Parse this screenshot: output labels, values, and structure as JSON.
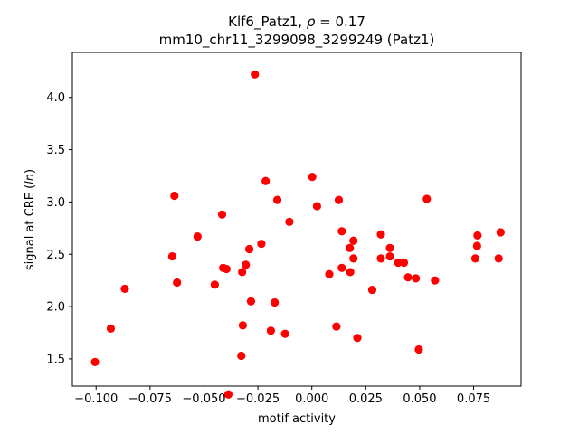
{
  "chart_data": {
    "type": "scatter",
    "title_line1_prefix": "Klf6_Patz1, ",
    "title_line1_rho": "ρ",
    "title_line1_suffix": " = 0.17",
    "title_line2": "mm10_chr11_3299098_3299249 (Patz1)",
    "xlabel": "motif activity",
    "ylabel_prefix": "signal at CRE (",
    "ylabel_italic": "ln",
    "ylabel_suffix": ")",
    "xlim": [
      -0.111,
      0.097
    ],
    "ylim": [
      1.24,
      4.43
    ],
    "xticks": [
      -0.1,
      -0.075,
      -0.05,
      -0.025,
      0.0,
      0.025,
      0.05,
      0.075
    ],
    "xtick_labels": [
      "−0.100",
      "−0.075",
      "−0.050",
      "−0.025",
      "0.000",
      "0.025",
      "0.050",
      "0.075"
    ],
    "yticks": [
      1.5,
      2.0,
      2.5,
      3.0,
      3.5,
      4.0
    ],
    "ytick_labels": [
      "1.5",
      "2.0",
      "2.5",
      "3.0",
      "3.5",
      "4.0"
    ],
    "marker_color": "#ff0000",
    "grid": false,
    "points": [
      {
        "x": -0.1005,
        "y": 1.47
      },
      {
        "x": -0.0932,
        "y": 1.79
      },
      {
        "x": -0.0867,
        "y": 2.17
      },
      {
        "x": -0.0637,
        "y": 3.06
      },
      {
        "x": -0.0647,
        "y": 2.48
      },
      {
        "x": -0.0625,
        "y": 2.23
      },
      {
        "x": -0.053,
        "y": 2.67
      },
      {
        "x": -0.045,
        "y": 2.21
      },
      {
        "x": -0.0416,
        "y": 2.88
      },
      {
        "x": -0.0411,
        "y": 2.37
      },
      {
        "x": -0.0396,
        "y": 2.36
      },
      {
        "x": -0.0387,
        "y": 1.16
      },
      {
        "x": -0.0327,
        "y": 1.53
      },
      {
        "x": -0.0323,
        "y": 2.33
      },
      {
        "x": -0.032,
        "y": 1.82
      },
      {
        "x": -0.0306,
        "y": 2.4
      },
      {
        "x": -0.029,
        "y": 2.55
      },
      {
        "x": -0.0282,
        "y": 2.05
      },
      {
        "x": -0.0264,
        "y": 4.22
      },
      {
        "x": -0.0234,
        "y": 2.6
      },
      {
        "x": -0.0214,
        "y": 3.2
      },
      {
        "x": -0.019,
        "y": 1.77
      },
      {
        "x": -0.0172,
        "y": 2.04
      },
      {
        "x": -0.016,
        "y": 3.02
      },
      {
        "x": -0.0124,
        "y": 1.74
      },
      {
        "x": -0.0104,
        "y": 2.81
      },
      {
        "x": 0.0002,
        "y": 3.24
      },
      {
        "x": 0.0024,
        "y": 2.96
      },
      {
        "x": 0.0081,
        "y": 2.31
      },
      {
        "x": 0.0114,
        "y": 1.81
      },
      {
        "x": 0.0125,
        "y": 3.02
      },
      {
        "x": 0.0139,
        "y": 2.72
      },
      {
        "x": 0.0139,
        "y": 2.37
      },
      {
        "x": 0.0176,
        "y": 2.56
      },
      {
        "x": 0.0178,
        "y": 2.33
      },
      {
        "x": 0.0193,
        "y": 2.46
      },
      {
        "x": 0.0193,
        "y": 2.63
      },
      {
        "x": 0.0211,
        "y": 1.7
      },
      {
        "x": 0.028,
        "y": 2.16
      },
      {
        "x": 0.032,
        "y": 2.69
      },
      {
        "x": 0.032,
        "y": 2.46
      },
      {
        "x": 0.0362,
        "y": 2.48
      },
      {
        "x": 0.0362,
        "y": 2.56
      },
      {
        "x": 0.04,
        "y": 2.42
      },
      {
        "x": 0.0427,
        "y": 2.42
      },
      {
        "x": 0.0446,
        "y": 2.28
      },
      {
        "x": 0.0482,
        "y": 2.27
      },
      {
        "x": 0.0496,
        "y": 1.59
      },
      {
        "x": 0.0533,
        "y": 3.03
      },
      {
        "x": 0.0571,
        "y": 2.25
      },
      {
        "x": 0.0758,
        "y": 2.46
      },
      {
        "x": 0.0766,
        "y": 2.58
      },
      {
        "x": 0.0768,
        "y": 2.68
      },
      {
        "x": 0.0866,
        "y": 2.46
      },
      {
        "x": 0.0875,
        "y": 2.71
      }
    ]
  }
}
